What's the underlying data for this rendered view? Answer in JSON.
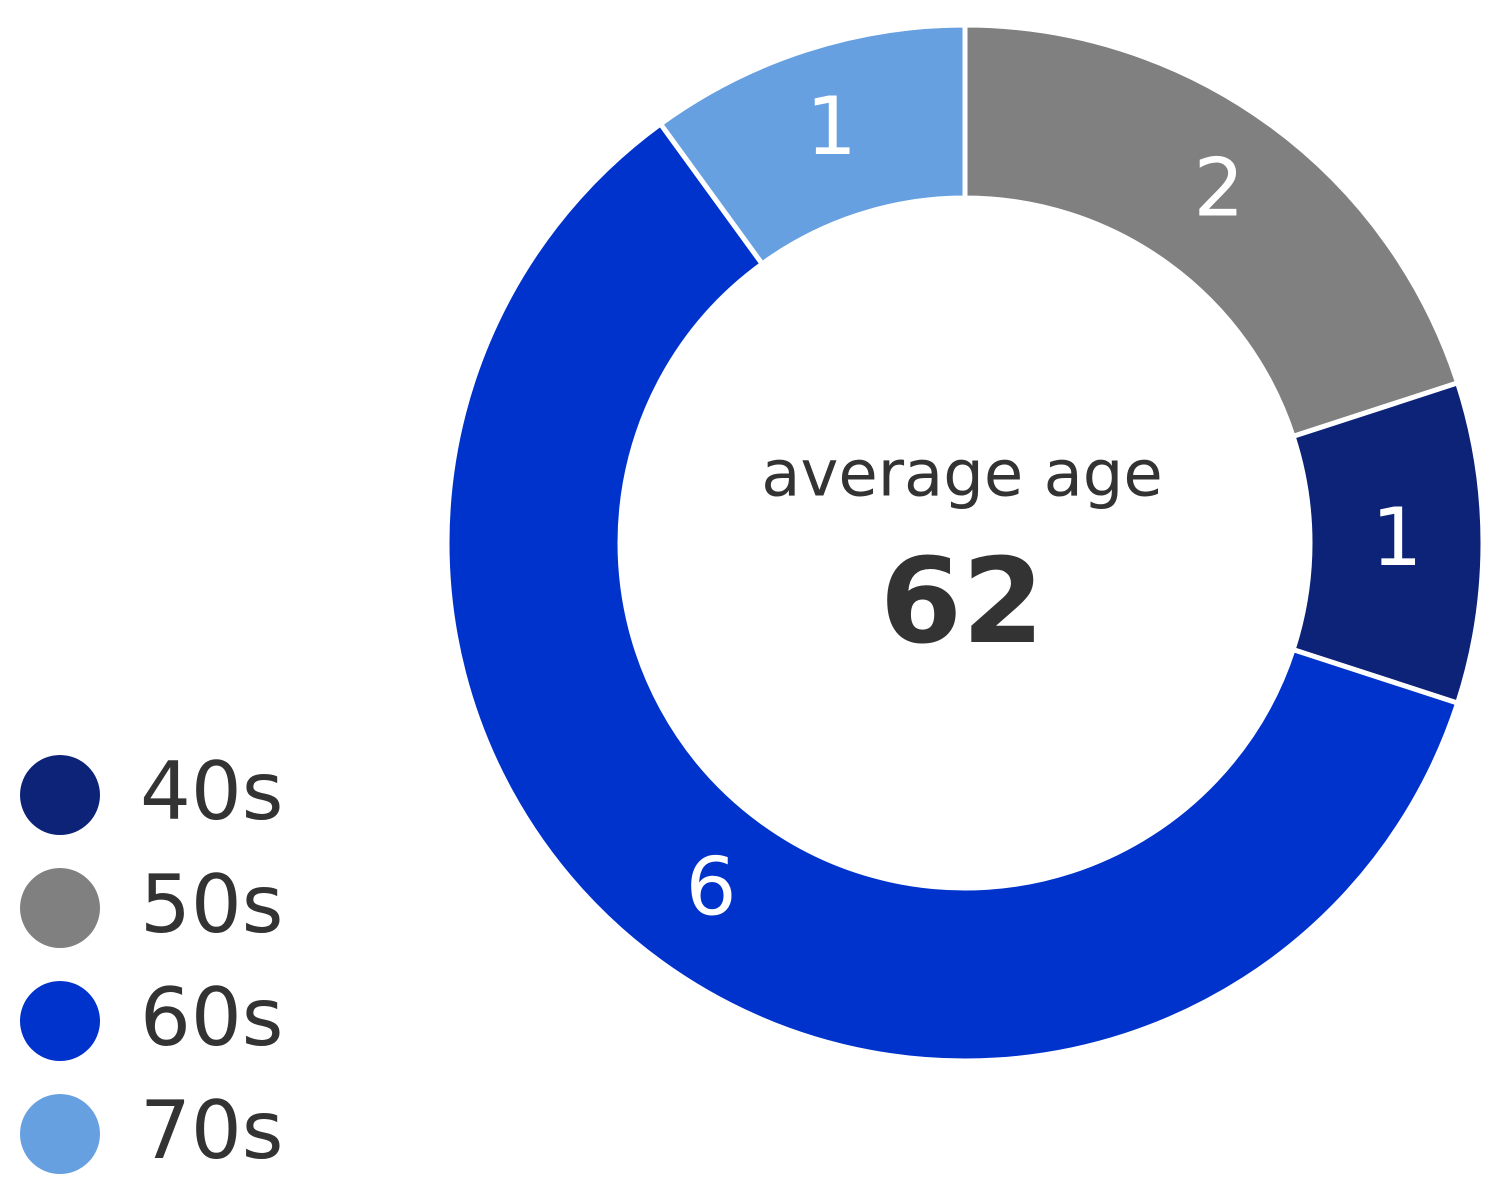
{
  "chart_data": {
    "type": "donut",
    "categories": [
      "40s",
      "50s",
      "60s",
      "70s"
    ],
    "values": [
      1,
      2,
      6,
      1
    ],
    "colors": [
      "#0c2378",
      "#808080",
      "#0033cc",
      "#66a0e0"
    ],
    "center_label": "average age",
    "center_value": 62,
    "legend": "bottom-left"
  }
}
